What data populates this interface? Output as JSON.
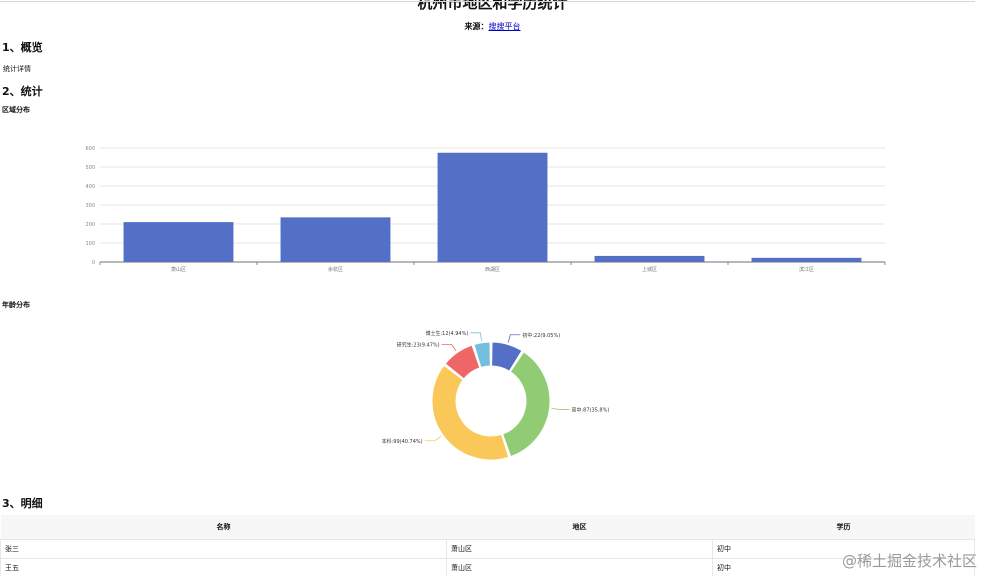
{
  "page": {
    "title": "杭州市地区和学历统计",
    "source_label": "来源：",
    "source_link": "搜搜平台"
  },
  "sections": {
    "overview_title": "1、概览",
    "overview_note": "统计详情",
    "stats_title": "2、统计",
    "region_title": "区域分布",
    "age_title": "年龄分布",
    "detail_title": "3、明细"
  },
  "chart_data": [
    {
      "type": "bar",
      "title": "区域分布",
      "categories": [
        "萧山区",
        "余杭区",
        "西湖区",
        "上城区",
        "滨江区"
      ],
      "values": [
        210,
        235,
        575,
        32,
        22
      ],
      "ylim": [
        0,
        600
      ],
      "yticks": [
        0,
        100,
        200,
        300,
        400,
        500,
        600
      ],
      "color": "#5470c6"
    },
    {
      "type": "pie",
      "title": "年龄分布",
      "slices": [
        {
          "label": "初中:22(9.05%)",
          "value": 22,
          "color": "#5470c6"
        },
        {
          "label": "高中:87(35.8%)",
          "value": 87,
          "color": "#91cc75"
        },
        {
          "label": "本科:99(40.74%)",
          "value": 99,
          "color": "#fac858"
        },
        {
          "label": "研究生:23(9.47%)",
          "value": 23,
          "color": "#ee6666"
        },
        {
          "label": "博士生:12(4.94%)",
          "value": 12,
          "color": "#73c0de"
        }
      ]
    }
  ],
  "table": {
    "headers": [
      "名称",
      "地区",
      "学历"
    ],
    "rows": [
      [
        "张三",
        "萧山区",
        "初中"
      ],
      [
        "王五",
        "萧山区",
        "初中"
      ]
    ]
  },
  "watermark": "@稀土掘金技术社区"
}
